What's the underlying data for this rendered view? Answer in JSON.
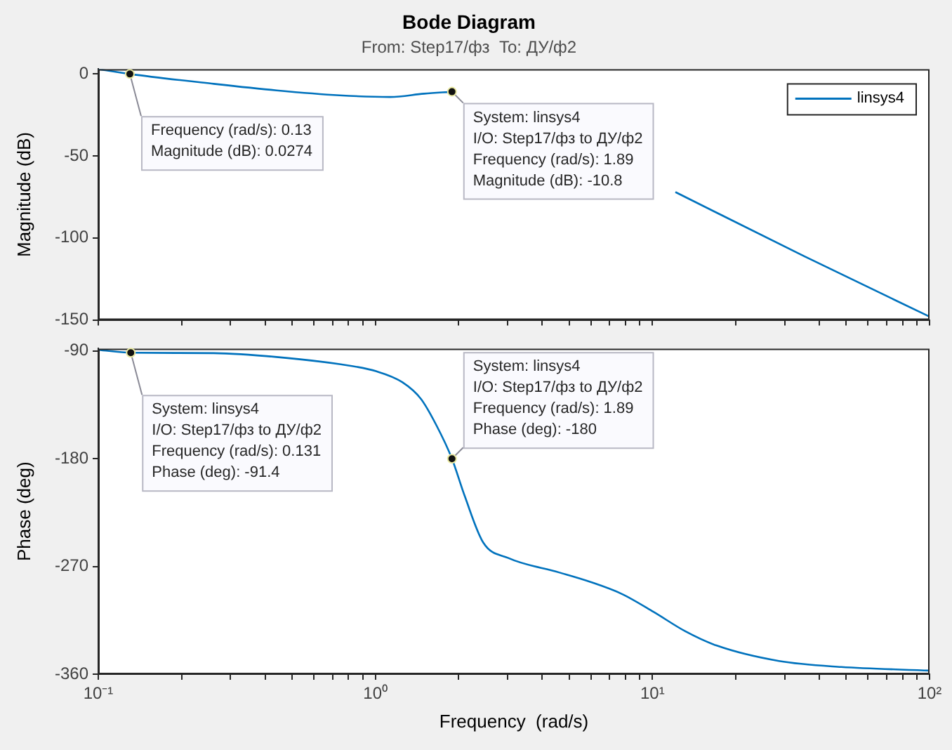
{
  "chart_data": [
    {
      "type": "line",
      "title": "Bode Diagram",
      "subtitle": "From: Step17/фз  To: ДУ/ф2",
      "ylabel": "Magnitude (dB)",
      "log": "x",
      "legend": "top right",
      "marker": "none",
      "tick_labels": "y",
      "x": [
        0.1,
        0.13,
        0.261,
        0.44,
        0.742,
        1.13,
        1.5,
        1.89,
        5,
        12.1,
        35.2,
        100
      ],
      "series": [
        {
          "name": "linsys4",
          "color": "#0072bd",
          "values": [
            3,
            0.0274,
            -6,
            -10,
            -13,
            -14,
            -12,
            -10.8,
            null,
            -72,
            -111,
            -148
          ]
        }
      ],
      "xlim": [
        0.1,
        100
      ],
      "xticks": [
        {
          "value": 0.1,
          "label": null
        },
        {
          "value": 0.2,
          "label": null
        },
        {
          "value": 0.3,
          "label": null
        },
        {
          "value": 0.4,
          "label": null
        },
        {
          "value": 0.5,
          "label": null
        },
        {
          "value": 0.6,
          "label": null
        },
        {
          "value": 0.7,
          "label": null
        },
        {
          "value": 0.8,
          "label": null
        },
        {
          "value": 0.9,
          "label": null
        },
        {
          "value": 1,
          "label": null
        },
        {
          "value": 2,
          "label": null
        },
        {
          "value": 3,
          "label": null
        },
        {
          "value": 4,
          "label": null
        },
        {
          "value": 5,
          "label": null
        },
        {
          "value": 6,
          "label": null
        },
        {
          "value": 7,
          "label": null
        },
        {
          "value": 8,
          "label": null
        },
        {
          "value": 9,
          "label": null
        },
        {
          "value": 10,
          "label": null
        },
        {
          "value": 20,
          "label": null
        },
        {
          "value": 30,
          "label": null
        },
        {
          "value": 40,
          "label": null
        },
        {
          "value": 50,
          "label": null
        },
        {
          "value": 60,
          "label": null
        },
        {
          "value": 70,
          "label": null
        },
        {
          "value": 80,
          "label": null
        },
        {
          "value": 90,
          "label": null
        },
        {
          "value": 100,
          "label": null
        }
      ],
      "ylim": [
        -150,
        3
      ],
      "yticks": [
        -150,
        -100,
        -50,
        0
      ],
      "annotations": [
        {
          "text": "Frequency (rad/s): 0.13\nMagnitude (dB): 0.0274",
          "x": 0.13,
          "y": 0.0274
        },
        {
          "text": "System: linsys4\nI/O: Step17/фз to ДУ/ф2\nFrequency (rad/s): 1.89\nMagnitude (dB): -10.8",
          "x": 1.89,
          "y": -10.8
        }
      ]
    },
    {
      "type": "line",
      "xlabel": "Frequency  (rad/s)",
      "ylabel": "Phase (deg)",
      "log": "x",
      "marker": "none",
      "x": [
        0.1,
        0.131,
        0.261,
        0.44,
        0.742,
        1.01,
        1.25,
        1.46,
        1.66,
        1.89,
        2.1,
        2.45,
        3.02,
        4.6,
        5.98,
        7.76,
        10.1,
        13.1,
        17,
        28.6,
        48,
        100
      ],
      "series": [
        {
          "color": "#0072bd",
          "values": [
            -89,
            -91.4,
            -91.8,
            -95,
            -101,
            -107,
            -116,
            -130,
            -152,
            -180,
            -211,
            -250,
            -263,
            -275,
            -283,
            -293,
            -308,
            -324,
            -336,
            -349,
            -354,
            -357
          ]
        }
      ],
      "xlim": [
        0.1,
        100
      ],
      "xticks": [
        {
          "value": 0.1,
          "label": "10⁻¹"
        },
        {
          "value": 0.2,
          "label": null
        },
        {
          "value": 0.3,
          "label": null
        },
        {
          "value": 0.4,
          "label": null
        },
        {
          "value": 0.5,
          "label": null
        },
        {
          "value": 0.6,
          "label": null
        },
        {
          "value": 0.7,
          "label": null
        },
        {
          "value": 0.8,
          "label": null
        },
        {
          "value": 0.9,
          "label": null
        },
        {
          "value": 1,
          "label": "10⁰"
        },
        {
          "value": 2,
          "label": null
        },
        {
          "value": 3,
          "label": null
        },
        {
          "value": 4,
          "label": null
        },
        {
          "value": 5,
          "label": null
        },
        {
          "value": 6,
          "label": null
        },
        {
          "value": 7,
          "label": null
        },
        {
          "value": 8,
          "label": null
        },
        {
          "value": 9,
          "label": null
        },
        {
          "value": 10,
          "label": "10¹"
        },
        {
          "value": 20,
          "label": null
        },
        {
          "value": 30,
          "label": null
        },
        {
          "value": 40,
          "label": null
        },
        {
          "value": 50,
          "label": null
        },
        {
          "value": 60,
          "label": null
        },
        {
          "value": 70,
          "label": null
        },
        {
          "value": 80,
          "label": null
        },
        {
          "value": 90,
          "label": null
        },
        {
          "value": 100,
          "label": "10²"
        }
      ],
      "ylim": [
        -360,
        -88
      ],
      "yticks": [
        -360,
        -270,
        -180,
        -90
      ],
      "annotations": [
        {
          "text": "System: linsys4\nI/O: Step17/фз to ДУ/ф2\nFrequency (rad/s): 0.131\nPhase (deg): -91.4",
          "x": 0.131,
          "y": -91.4
        },
        {
          "text": "System: linsys4\nI/O: Step17/фз to ДУ/ф2\nFrequency (rad/s): 1.89\nPhase (deg): -180",
          "x": 1.89,
          "y": -180
        }
      ]
    }
  ]
}
